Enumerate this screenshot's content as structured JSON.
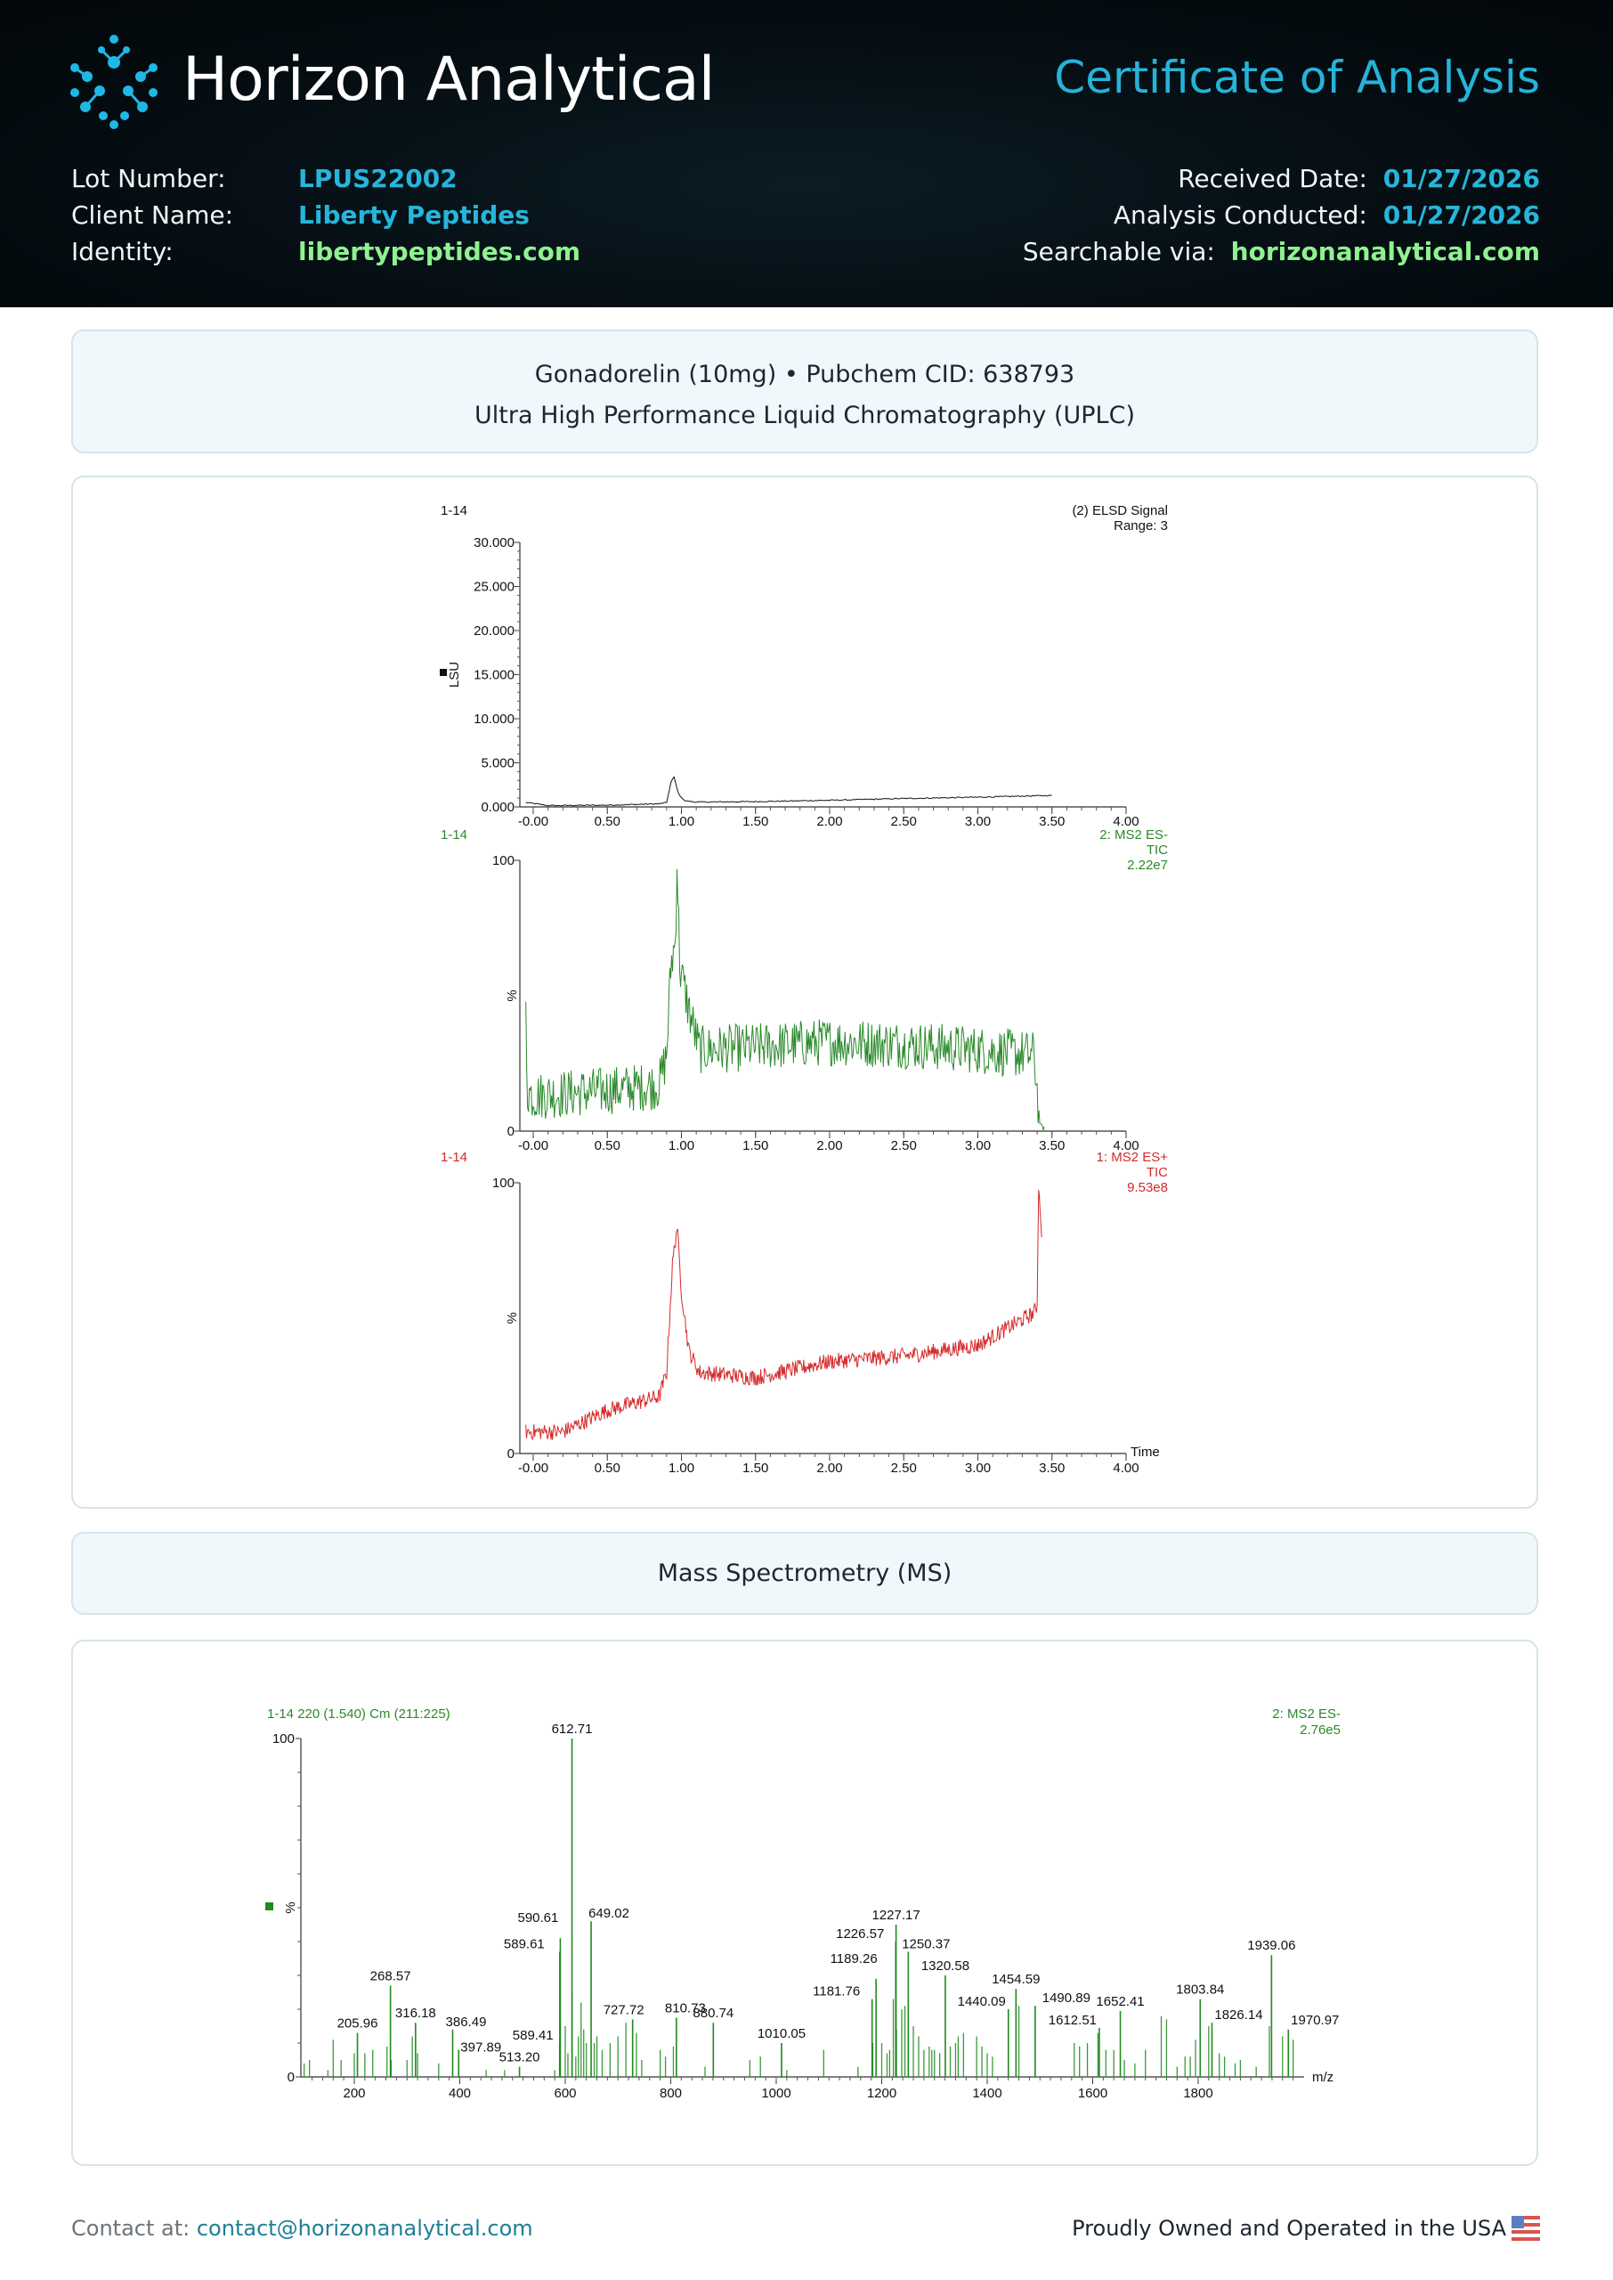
{
  "header": {
    "brand": "Horizon Analytical",
    "title": "Certificate of Analysis",
    "lot_label": "Lot Number:",
    "lot_value": "LPUS22002",
    "client_label": "Client Name:",
    "client_value": "Liberty Peptides",
    "identity_label": "Identity:",
    "identity_value": "libertypeptides.com",
    "received_label": "Received Date:",
    "received_value": "01/27/2026",
    "conducted_label": "Analysis Conducted:",
    "conducted_value": "01/27/2026",
    "searchable_label": "Searchable via:",
    "searchable_value": "horizonanalytical.com"
  },
  "sample": {
    "line1": "Gonadorelin (10mg) • Pubchem CID: 638793",
    "line2": "Ultra High Performance Liquid Chromatography (UPLC)"
  },
  "ms_section": {
    "title": "Mass Spectrometry (MS)"
  },
  "footer": {
    "contact_label": "Contact at:",
    "contact_email": "contact@horizonanalytical.com",
    "usa_text": "Proudly Owned and Operated in the USA"
  },
  "colors": {
    "accent": "#26b3d8",
    "identity_green": "#8ff28f",
    "trace_green": "#1f8a1f",
    "trace_red": "#d42020",
    "header_bg": "#050e13"
  },
  "chart_data": [
    {
      "type": "line",
      "id": "elsd",
      "sample_label": "1-14",
      "legend": [
        "(2) ELSD Signal",
        "Range: 3"
      ],
      "ylabel": "LSU",
      "xlabel": "",
      "xlim": [
        -0.06,
        4.0
      ],
      "ylim": [
        0,
        30000
      ],
      "yticks": [
        "0.000",
        "5.000",
        "10.000",
        "15.000",
        "20.000",
        "25.000",
        "30.000"
      ],
      "xticks": [
        "-0.00",
        "0.50",
        "1.00",
        "1.50",
        "2.00",
        "2.50",
        "3.00",
        "3.50",
        "4.00"
      ],
      "noise": 60,
      "x": [
        -0.05,
        0.0,
        0.1,
        0.5,
        0.85,
        0.9,
        0.93,
        0.95,
        0.98,
        1.02,
        1.1,
        1.5,
        2.0,
        2.5,
        3.0,
        3.5
      ],
      "y": [
        500,
        400,
        150,
        200,
        350,
        500,
        2800,
        3400,
        1500,
        700,
        550,
        600,
        750,
        950,
        1100,
        1300
      ]
    },
    {
      "type": "line",
      "id": "ms2-es-minus-tic",
      "sample_label": "1-14",
      "legend": [
        "2: MS2 ES-",
        "TIC",
        "2.22e7"
      ],
      "ylabel": "%",
      "xlabel": "",
      "xlim": [
        -0.06,
        4.0
      ],
      "ylim": [
        0,
        100
      ],
      "yticks": [
        "0",
        "100"
      ],
      "xticks": [
        "-0.00",
        "0.50",
        "1.00",
        "1.50",
        "2.00",
        "2.50",
        "3.00",
        "3.50",
        "4.00"
      ],
      "noise": 9,
      "x": [
        -0.05,
        -0.04,
        0.0,
        0.5,
        0.85,
        0.9,
        0.93,
        0.96,
        0.97,
        0.99,
        1.05,
        1.12,
        1.5,
        2.0,
        2.5,
        3.0,
        3.38,
        3.42,
        3.45
      ],
      "y": [
        45,
        15,
        13,
        15,
        17,
        28,
        62,
        70,
        100,
        60,
        45,
        30,
        31,
        33,
        32,
        30,
        28,
        2,
        1
      ]
    },
    {
      "type": "line",
      "id": "ms2-es-plus-tic",
      "sample_label": "1-14",
      "legend": [
        "1: MS2 ES+",
        "TIC",
        "9.53e8"
      ],
      "ylabel": "%",
      "xlabel": "Time",
      "xlim": [
        -0.06,
        4.0
      ],
      "ylim": [
        0,
        100
      ],
      "yticks": [
        "0",
        "100"
      ],
      "xticks": [
        "-0.00",
        "0.50",
        "1.00",
        "1.50",
        "2.00",
        "2.50",
        "3.00",
        "3.50",
        "4.00"
      ],
      "noise": 3,
      "x": [
        -0.05,
        0.2,
        0.5,
        0.85,
        0.9,
        0.94,
        0.97,
        1.0,
        1.05,
        1.12,
        1.5,
        2.0,
        2.5,
        3.0,
        3.38,
        3.4,
        3.41,
        3.43
      ],
      "y": [
        8,
        8,
        16,
        21,
        30,
        70,
        84,
        60,
        38,
        30,
        28,
        34,
        36,
        40,
        52,
        55,
        100,
        80
      ]
    },
    {
      "type": "bar",
      "id": "ms-spectrum",
      "title": "1-14 220 (1.540) Cm (211:225)",
      "legend": [
        "2: MS2 ES-",
        "2.76e5"
      ],
      "ylabel": "%",
      "xlabel": "m/z",
      "xlim": [
        100,
        2000
      ],
      "ylim": [
        0,
        100
      ],
      "yticks": [
        "0",
        "100"
      ],
      "xticks": [
        "200",
        "400",
        "600",
        "800",
        "1000",
        "1200",
        "1400",
        "1600",
        "1800"
      ],
      "labeled_peaks": [
        {
          "mz": "205.96",
          "i": 13
        },
        {
          "mz": "268.57",
          "i": 27
        },
        {
          "mz": "316.18",
          "i": 16
        },
        {
          "mz": "386.49",
          "i": 14
        },
        {
          "mz": "397.89",
          "i": 8
        },
        {
          "mz": "513.20",
          "i": 3
        },
        {
          "mz": "589.41",
          "i": 10
        },
        {
          "mz": "589.61",
          "i": 37
        },
        {
          "mz": "590.61",
          "i": 41
        },
        {
          "mz": "612.71",
          "i": 100
        },
        {
          "mz": "649.02",
          "i": 46
        },
        {
          "mz": "727.72",
          "i": 17
        },
        {
          "mz": "810.73",
          "i": 17.5
        },
        {
          "mz": "880.74",
          "i": 16
        },
        {
          "mz": "1010.05",
          "i": 10
        },
        {
          "mz": "1181.76",
          "i": 23
        },
        {
          "mz": "1189.26",
          "i": 29
        },
        {
          "mz": "1226.57",
          "i": 40
        },
        {
          "mz": "1227.17",
          "i": 45
        },
        {
          "mz": "1250.37",
          "i": 37
        },
        {
          "mz": "1320.58",
          "i": 30
        },
        {
          "mz": "1440.09",
          "i": 20
        },
        {
          "mz": "1454.59",
          "i": 26
        },
        {
          "mz": "1490.89",
          "i": 21
        },
        {
          "mz": "1612.51",
          "i": 14.5
        },
        {
          "mz": "1652.41",
          "i": 19.5
        },
        {
          "mz": "1803.84",
          "i": 23
        },
        {
          "mz": "1826.14",
          "i": 16
        },
        {
          "mz": "1939.06",
          "i": 36
        },
        {
          "mz": "1970.97",
          "i": 14
        }
      ],
      "minor_peaks": [
        [
          105,
          4
        ],
        [
          115,
          5
        ],
        [
          150,
          2
        ],
        [
          160,
          11
        ],
        [
          175,
          5
        ],
        [
          200,
          7
        ],
        [
          220,
          7
        ],
        [
          235,
          8
        ],
        [
          262,
          9
        ],
        [
          270,
          5
        ],
        [
          300,
          5
        ],
        [
          310,
          12
        ],
        [
          320,
          7
        ],
        [
          360,
          4
        ],
        [
          450,
          2
        ],
        [
          485,
          2
        ],
        [
          580,
          2
        ],
        [
          600,
          15
        ],
        [
          605,
          7
        ],
        [
          613,
          25
        ],
        [
          620,
          6
        ],
        [
          625,
          12
        ],
        [
          630,
          22
        ],
        [
          635,
          14
        ],
        [
          640,
          10
        ],
        [
          655,
          10
        ],
        [
          660,
          12
        ],
        [
          670,
          8
        ],
        [
          685,
          10
        ],
        [
          700,
          12
        ],
        [
          715,
          16
        ],
        [
          735,
          13
        ],
        [
          745,
          5
        ],
        [
          780,
          8
        ],
        [
          790,
          6
        ],
        [
          805,
          9
        ],
        [
          865,
          3
        ],
        [
          950,
          5
        ],
        [
          970,
          6
        ],
        [
          1020,
          2
        ],
        [
          1090,
          8
        ],
        [
          1155,
          3
        ],
        [
          1183,
          10
        ],
        [
          1200,
          10
        ],
        [
          1210,
          7
        ],
        [
          1215,
          8
        ],
        [
          1222,
          23
        ],
        [
          1228,
          14
        ],
        [
          1238,
          20
        ],
        [
          1244,
          21
        ],
        [
          1260,
          15
        ],
        [
          1270,
          12
        ],
        [
          1280,
          8
        ],
        [
          1290,
          9
        ],
        [
          1295,
          8
        ],
        [
          1300,
          8
        ],
        [
          1310,
          7
        ],
        [
          1330,
          9
        ],
        [
          1340,
          10
        ],
        [
          1345,
          12
        ],
        [
          1355,
          13
        ],
        [
          1380,
          12
        ],
        [
          1390,
          9
        ],
        [
          1400,
          7
        ],
        [
          1410,
          6
        ],
        [
          1460,
          21
        ],
        [
          1565,
          10
        ],
        [
          1575,
          9
        ],
        [
          1590,
          10
        ],
        [
          1610,
          13
        ],
        [
          1625,
          8
        ],
        [
          1640,
          8
        ],
        [
          1660,
          5
        ],
        [
          1680,
          4
        ],
        [
          1700,
          8
        ],
        [
          1730,
          18
        ],
        [
          1740,
          17
        ],
        [
          1760,
          3
        ],
        [
          1775,
          6
        ],
        [
          1785,
          6
        ],
        [
          1795,
          11
        ],
        [
          1820,
          15
        ],
        [
          1840,
          7
        ],
        [
          1850,
          6
        ],
        [
          1870,
          4
        ],
        [
          1880,
          5
        ],
        [
          1910,
          3
        ],
        [
          1935,
          15
        ],
        [
          1960,
          12
        ],
        [
          1980,
          11
        ]
      ]
    }
  ]
}
